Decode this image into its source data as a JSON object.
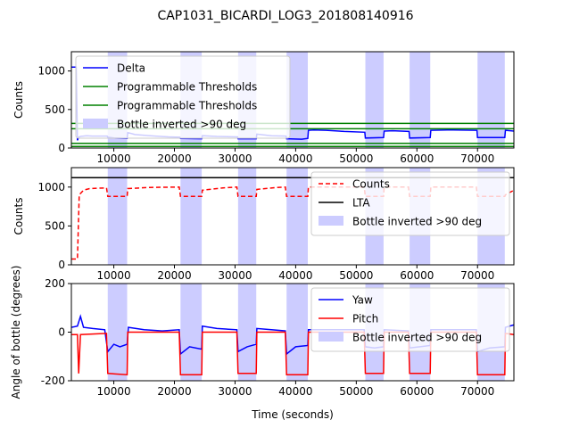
{
  "title": "CAP1031_BICARDI_LOG3_201808140916",
  "colors": {
    "band": "#ccccff",
    "delta": "#0000ff",
    "threshold": "#008000",
    "counts": "#ff0000",
    "lta": "#000000",
    "yaw": "#0000ff",
    "pitch": "#ff0000"
  },
  "chart_data": [
    {
      "type": "line",
      "panel": "top",
      "title": "",
      "xlabel": "",
      "ylabel": "Counts",
      "xlim": [
        3000,
        76000
      ],
      "ylim": [
        0,
        1250
      ],
      "xticks": [
        10000,
        20000,
        30000,
        40000,
        50000,
        60000,
        70000
      ],
      "yticks": [
        0,
        500,
        1000
      ],
      "legend_position": "upper-left",
      "grid": false,
      "bands": [
        [
          9000,
          12200
        ],
        [
          21000,
          24500
        ],
        [
          30500,
          33500
        ],
        [
          38500,
          42000
        ],
        [
          51500,
          54500
        ],
        [
          58800,
          62200
        ],
        [
          70000,
          74500
        ]
      ],
      "band_label": "Bottle inverted >90 deg",
      "series": [
        {
          "name": "Delta",
          "color": "delta",
          "points": [
            [
              3000,
              1050
            ],
            [
              3800,
              1050
            ],
            [
              4000,
              100
            ],
            [
              4200,
              140
            ],
            [
              4500,
              150
            ],
            [
              5500,
              160
            ],
            [
              6500,
              155
            ],
            [
              8900,
              155
            ],
            [
              9000,
              140
            ],
            [
              10000,
              130
            ],
            [
              12200,
              125
            ],
            [
              12300,
              200
            ],
            [
              13500,
              175
            ],
            [
              16000,
              160
            ],
            [
              19000,
              145
            ],
            [
              20900,
              140
            ],
            [
              21000,
              125
            ],
            [
              24500,
              120
            ],
            [
              24600,
              160
            ],
            [
              27000,
              150
            ],
            [
              30400,
              145
            ],
            [
              30500,
              120
            ],
            [
              33500,
              120
            ],
            [
              33600,
              180
            ],
            [
              36000,
              160
            ],
            [
              38400,
              155
            ],
            [
              38500,
              120
            ],
            [
              41000,
              115
            ],
            [
              42000,
              125
            ],
            [
              42100,
              230
            ],
            [
              43000,
              235
            ],
            [
              45000,
              230
            ],
            [
              48000,
              215
            ],
            [
              51400,
              205
            ],
            [
              51500,
              130
            ],
            [
              54500,
              135
            ],
            [
              54600,
              220
            ],
            [
              56000,
              225
            ],
            [
              58700,
              215
            ],
            [
              58800,
              130
            ],
            [
              62200,
              135
            ],
            [
              62300,
              230
            ],
            [
              65000,
              235
            ],
            [
              69900,
              230
            ],
            [
              70000,
              135
            ],
            [
              74500,
              135
            ],
            [
              74600,
              230
            ],
            [
              76000,
              220
            ]
          ]
        },
        {
          "name": "Programmable Thresholds",
          "color": "threshold",
          "points": [
            [
              3000,
              320
            ],
            [
              76000,
              320
            ]
          ]
        },
        {
          "name": "Programmable Thresholds",
          "color": "threshold",
          "points": [
            [
              3000,
              250
            ],
            [
              76000,
              250
            ]
          ]
        },
        {
          "name": "",
          "color": "threshold",
          "points": [
            [
              3000,
              60
            ],
            [
              76000,
              60
            ]
          ]
        },
        {
          "name": "",
          "color": "threshold",
          "points": [
            [
              3000,
              20
            ],
            [
              76000,
              20
            ]
          ]
        }
      ]
    },
    {
      "type": "line",
      "panel": "middle",
      "title": "",
      "xlabel": "",
      "ylabel": "Counts",
      "xlim": [
        3000,
        76000
      ],
      "ylim": [
        0,
        1250
      ],
      "xticks": [
        10000,
        20000,
        30000,
        40000,
        50000,
        60000,
        70000
      ],
      "yticks": [
        0,
        500,
        1000
      ],
      "legend_position": "upper-right",
      "grid": false,
      "bands": [
        [
          9000,
          12200
        ],
        [
          21000,
          24500
        ],
        [
          30500,
          33500
        ],
        [
          38500,
          42000
        ],
        [
          51500,
          54500
        ],
        [
          58800,
          62200
        ],
        [
          70000,
          74500
        ]
      ],
      "band_label": "Bottle inverted >90 deg",
      "series": [
        {
          "name": "Counts",
          "color": "counts",
          "dashed": true,
          "points": [
            [
              3000,
              75
            ],
            [
              4000,
              75
            ],
            [
              4300,
              900
            ],
            [
              5000,
              960
            ],
            [
              6000,
              980
            ],
            [
              8800,
              990
            ],
            [
              9000,
              880
            ],
            [
              12200,
              880
            ],
            [
              12300,
              980
            ],
            [
              16000,
              995
            ],
            [
              20800,
              1000
            ],
            [
              21000,
              880
            ],
            [
              24500,
              880
            ],
            [
              24600,
              960
            ],
            [
              28000,
              990
            ],
            [
              30300,
              1000
            ],
            [
              30500,
              880
            ],
            [
              33500,
              880
            ],
            [
              33600,
              970
            ],
            [
              37000,
              995
            ],
            [
              38300,
              1000
            ],
            [
              38500,
              880
            ],
            [
              42000,
              880
            ],
            [
              42100,
              1000
            ],
            [
              48000,
              1000
            ],
            [
              51300,
              1000
            ],
            [
              51500,
              880
            ],
            [
              54500,
              880
            ],
            [
              54600,
              1000
            ],
            [
              58600,
              1000
            ],
            [
              58800,
              880
            ],
            [
              62200,
              880
            ],
            [
              62300,
              1000
            ],
            [
              69800,
              1000
            ],
            [
              70000,
              880
            ],
            [
              74500,
              880
            ],
            [
              74600,
              900
            ],
            [
              76000,
              960
            ]
          ]
        },
        {
          "name": "LTA",
          "color": "lta",
          "points": [
            [
              3000,
              1120
            ],
            [
              76000,
              1120
            ]
          ]
        }
      ]
    },
    {
      "type": "line",
      "panel": "bottom",
      "title": "",
      "xlabel": "Time (seconds)",
      "ylabel": "Angle of bottle (degrees)",
      "xlim": [
        3000,
        76000
      ],
      "ylim": [
        -200,
        200
      ],
      "xticks": [
        10000,
        20000,
        30000,
        40000,
        50000,
        60000,
        70000
      ],
      "yticks": [
        -200,
        0,
        200
      ],
      "legend_position": "upper-right",
      "grid": false,
      "bands": [
        [
          9000,
          12200
        ],
        [
          21000,
          24500
        ],
        [
          30500,
          33500
        ],
        [
          38500,
          42000
        ],
        [
          51500,
          54500
        ],
        [
          58800,
          62200
        ],
        [
          70000,
          74500
        ]
      ],
      "band_label": "Bottle inverted >90 deg",
      "series": [
        {
          "name": "Yaw",
          "color": "yaw",
          "points": [
            [
              3000,
              20
            ],
            [
              4000,
              25
            ],
            [
              4500,
              65
            ],
            [
              5000,
              20
            ],
            [
              6500,
              15
            ],
            [
              8500,
              10
            ],
            [
              9000,
              -80
            ],
            [
              10000,
              -50
            ],
            [
              11000,
              -60
            ],
            [
              12200,
              -50
            ],
            [
              12400,
              20
            ],
            [
              15000,
              10
            ],
            [
              18000,
              5
            ],
            [
              20800,
              10
            ],
            [
              21000,
              -90
            ],
            [
              22500,
              -60
            ],
            [
              24500,
              -70
            ],
            [
              24600,
              25
            ],
            [
              27000,
              15
            ],
            [
              30300,
              10
            ],
            [
              30500,
              -80
            ],
            [
              32000,
              -60
            ],
            [
              33500,
              -50
            ],
            [
              33600,
              15
            ],
            [
              36000,
              10
            ],
            [
              38300,
              5
            ],
            [
              38500,
              -90
            ],
            [
              40000,
              -60
            ],
            [
              42000,
              -55
            ],
            [
              42100,
              10
            ],
            [
              48000,
              10
            ],
            [
              51300,
              10
            ],
            [
              51500,
              -60
            ],
            [
              53000,
              -65
            ],
            [
              54500,
              -60
            ],
            [
              54600,
              10
            ],
            [
              58600,
              5
            ],
            [
              58800,
              -65
            ],
            [
              60500,
              -60
            ],
            [
              62200,
              -55
            ],
            [
              62300,
              10
            ],
            [
              69800,
              10
            ],
            [
              70000,
              -80
            ],
            [
              72000,
              -65
            ],
            [
              74500,
              -60
            ],
            [
              74600,
              20
            ],
            [
              76000,
              30
            ]
          ]
        },
        {
          "name": "Pitch",
          "color": "pitch",
          "points": [
            [
              3000,
              -10
            ],
            [
              4000,
              -10
            ],
            [
              4200,
              -170
            ],
            [
              4500,
              -10
            ],
            [
              8800,
              -5
            ],
            [
              9000,
              -170
            ],
            [
              12200,
              -175
            ],
            [
              12300,
              0
            ],
            [
              20800,
              0
            ],
            [
              21000,
              -175
            ],
            [
              24500,
              -175
            ],
            [
              24600,
              0
            ],
            [
              30300,
              0
            ],
            [
              30500,
              -170
            ],
            [
              33500,
              -170
            ],
            [
              33600,
              0
            ],
            [
              38300,
              0
            ],
            [
              38500,
              -175
            ],
            [
              42000,
              -175
            ],
            [
              42100,
              0
            ],
            [
              51300,
              0
            ],
            [
              51500,
              -170
            ],
            [
              54500,
              -170
            ],
            [
              54600,
              0
            ],
            [
              58600,
              0
            ],
            [
              58800,
              -170
            ],
            [
              62200,
              -170
            ],
            [
              62300,
              0
            ],
            [
              69800,
              0
            ],
            [
              70000,
              -175
            ],
            [
              74500,
              -175
            ],
            [
              74600,
              -5
            ],
            [
              76000,
              -10
            ]
          ]
        }
      ]
    }
  ]
}
